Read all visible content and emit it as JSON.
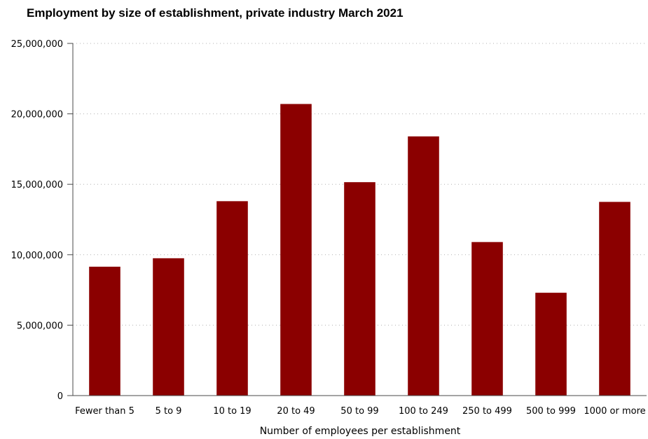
{
  "chart_data": {
    "type": "bar",
    "title": "Employment by size of establishment, private industry March 2021",
    "xlabel": "Number of employees per establishment",
    "ylabel": "",
    "categories": [
      "Fewer than 5",
      "5 to 9",
      "10 to 19",
      "20 to 49",
      "50 to 99",
      "100 to 249",
      "250 to 499",
      "500 to 999",
      "1000 or more"
    ],
    "values": [
      9150000,
      9750000,
      13800000,
      20700000,
      15150000,
      18400000,
      10900000,
      7300000,
      13750000
    ],
    "ylim": [
      0,
      25000000
    ],
    "yticks": [
      0,
      5000000,
      10000000,
      15000000,
      20000000,
      25000000
    ],
    "ytick_labels": [
      "0",
      "5,000,000",
      "10,000,000",
      "15,000,000",
      "20,000,000",
      "25,000,000"
    ],
    "grid": true,
    "bar_color": "#8b0000"
  }
}
